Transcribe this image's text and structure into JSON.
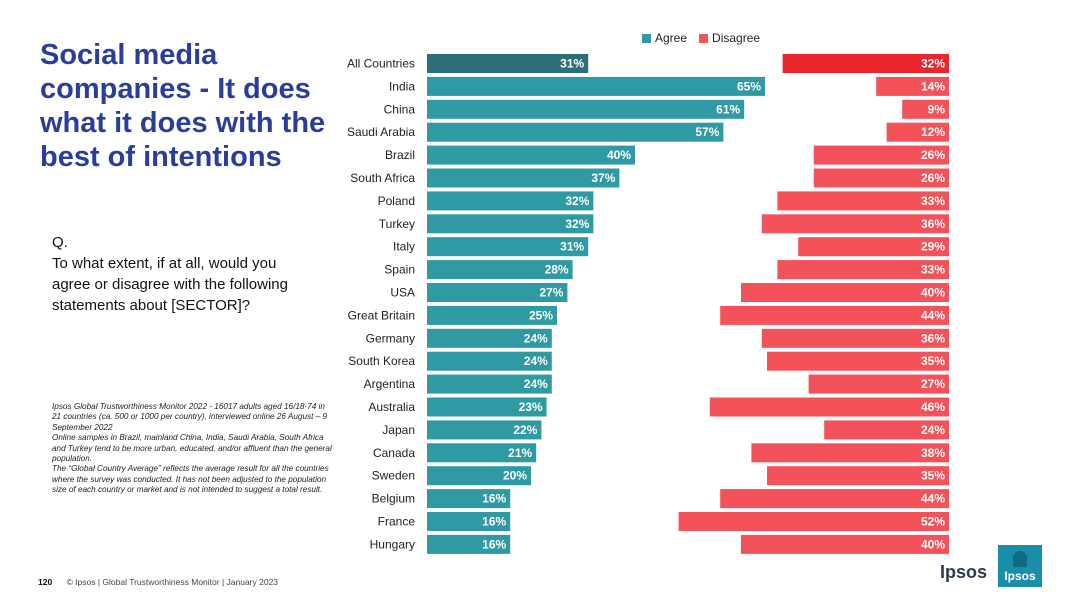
{
  "title": "Social media companies - It does what it does with the best of intentions",
  "question": {
    "prefix": "Q.",
    "text": "To what extent, if at all, would you agree or disagree with the following statements about [SECTOR]?"
  },
  "footnote": {
    "lines": [
      "Ipsos Global Trustworthiness Monitor 2022 - 16017 adults aged 16/18-74 in 21 countries (ca. 500 or 1000 per country), interviewed online 26 August – 9 September 2022",
      "Online samples in Brazil, mainland China, India, Saudi Arabia, South Africa and Turkey tend to be more urban, educated, and/or affluent than the general population.",
      "The “Global Country Average” reflects the average result for all the countries where the survey was conducted. It has not been adjusted to the population size of each country or market and is not intended to suggest a total result."
    ]
  },
  "footer": {
    "page_number": "120",
    "text": "© Ipsos | Global Trustworthiness Monitor | January 2023"
  },
  "logo": {
    "wordmark": "Ipsos",
    "box_text": "Ipsos"
  },
  "legend": {
    "agree": "Agree",
    "disagree": "Disagree"
  },
  "colors": {
    "agree": "#2f9aa3",
    "agree_highlight": "#2d6e78",
    "disagree": "#f4525a",
    "disagree_highlight": "#e8262c",
    "title": "#2a3d9a"
  },
  "chart_data": {
    "type": "bar",
    "orientation": "horizontal",
    "title": "",
    "categories": [
      "All Countries",
      "India",
      "China",
      "Saudi Arabia",
      "Brazil",
      "South Africa",
      "Poland",
      "Turkey",
      "Italy",
      "Spain",
      "USA",
      "Great Britain",
      "Germany",
      "South Korea",
      "Argentina",
      "Australia",
      "Japan",
      "Canada",
      "Sweden",
      "Belgium",
      "France",
      "Hungary"
    ],
    "series": [
      {
        "name": "Agree",
        "values": [
          31,
          65,
          61,
          57,
          40,
          37,
          32,
          32,
          31,
          28,
          27,
          25,
          24,
          24,
          24,
          23,
          22,
          21,
          20,
          16,
          16,
          16
        ]
      },
      {
        "name": "Disagree",
        "values": [
          32,
          14,
          9,
          12,
          26,
          26,
          33,
          36,
          29,
          33,
          40,
          44,
          36,
          35,
          27,
          46,
          24,
          38,
          35,
          44,
          52,
          40
        ]
      }
    ],
    "value_suffix": "%",
    "highlight_category": "All Countries",
    "legend_position": "top",
    "grid": false
  }
}
